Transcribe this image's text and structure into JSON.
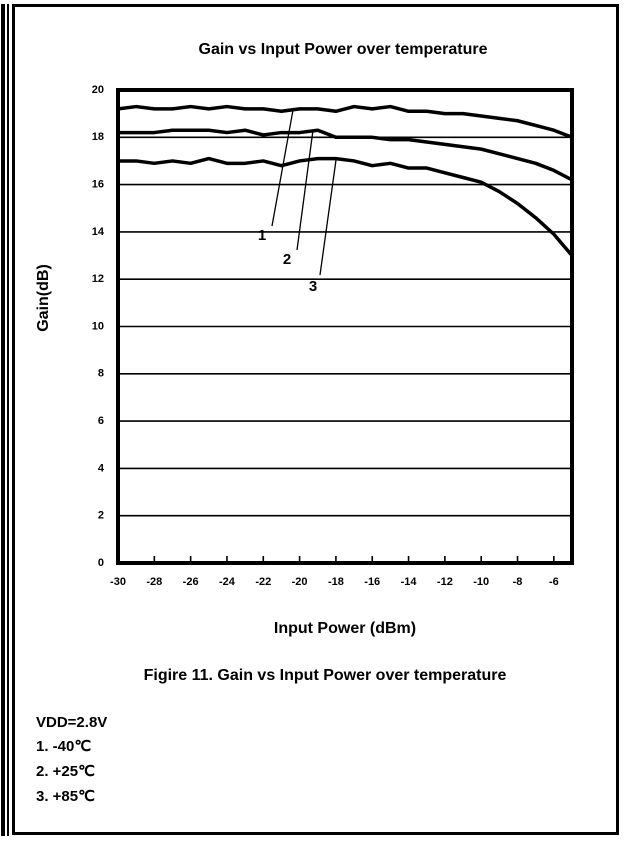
{
  "chart_data": {
    "type": "line",
    "title": "Gain vs Input Power over temperature",
    "xlabel": "Input Power (dBm)",
    "ylabel": "Gain(dB)",
    "x": [
      -30,
      -29,
      -28,
      -27,
      -26,
      -25,
      -24,
      -23,
      -22,
      -21,
      -20,
      -19,
      -18,
      -17,
      -16,
      -15,
      -14,
      -13,
      -12,
      -11,
      -10,
      -9,
      -8,
      -7,
      -6,
      -5
    ],
    "series": [
      {
        "color": "#000000",
        "values": [
          19.2,
          19.3,
          19.2,
          19.2,
          19.3,
          19.2,
          19.3,
          19.2,
          19.2,
          19.1,
          19.2,
          19.2,
          19.1,
          19.3,
          19.2,
          19.3,
          19.1,
          19.1,
          19.0,
          19.0,
          18.9,
          18.8,
          18.7,
          18.5,
          18.3,
          18.0
        ]
      },
      {
        "color": "#000000",
        "values": [
          18.2,
          18.2,
          18.2,
          18.3,
          18.3,
          18.3,
          18.2,
          18.3,
          18.1,
          18.2,
          18.2,
          18.3,
          18.0,
          18.0,
          18.0,
          17.9,
          17.9,
          17.8,
          17.7,
          17.6,
          17.5,
          17.3,
          17.1,
          16.9,
          16.6,
          16.2
        ]
      },
      {
        "color": "#000000",
        "values": [
          17.0,
          17.0,
          16.9,
          17.0,
          16.9,
          17.1,
          16.9,
          16.9,
          17.0,
          16.8,
          17.0,
          17.1,
          17.1,
          17.0,
          16.8,
          16.9,
          16.7,
          16.7,
          16.5,
          16.3,
          16.1,
          15.7,
          15.2,
          14.6,
          13.9,
          13.0
        ]
      }
    ],
    "annotations": [
      "1",
      "2",
      "3"
    ],
    "xlim": [
      -30,
      -5
    ],
    "xticks": [
      -30,
      -28,
      -26,
      -24,
      -22,
      -20,
      -18,
      -16,
      -14,
      -12,
      -10,
      -8,
      -6
    ],
    "ylim": [
      0,
      20
    ],
    "yticks": [
      0,
      2,
      4,
      6,
      8,
      10,
      12,
      14,
      16,
      18,
      20
    ],
    "grid": true
  },
  "caption": "Figire 11. Gain vs Input Power over temperature",
  "notes": [
    "VDD=2.8V",
    "1.  -40℃",
    "2.  +25℃",
    "3.  +85℃"
  ]
}
